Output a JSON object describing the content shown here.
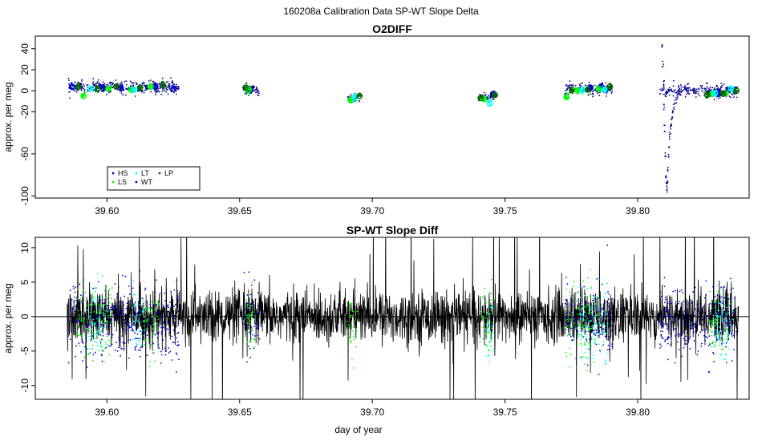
{
  "page_title": "160208a   Calibration Data SP-WT Slope Delta",
  "colors": {
    "HS": "#0000cd",
    "LS": "#00ff00",
    "LT": "#00ffff",
    "WT": "#00008b",
    "LP": "#006400",
    "spwt_line": "#000000"
  },
  "chart_data": [
    {
      "type": "scatter",
      "title": "O2DIFF",
      "xlabel": "",
      "ylabel": "approx. per meg",
      "xlim": [
        39.573,
        39.842
      ],
      "ylim": [
        -102,
        52
      ],
      "x_ticks": [
        39.6,
        39.65,
        39.7,
        39.75,
        39.8
      ],
      "x_tick_labels": [
        "39.60",
        "39.65",
        "39.70",
        "39.75",
        "39.80"
      ],
      "y_ticks": [
        -100,
        -60,
        -20,
        0,
        20,
        40
      ],
      "y_tick_labels": [
        "-100",
        "-60",
        "-20",
        "0",
        "20",
        "40"
      ],
      "legend": {
        "placement": "bottom-left",
        "entries": [
          {
            "key": "HS",
            "label": "HS"
          },
          {
            "key": "LS",
            "label": "LS"
          },
          {
            "key": "LT",
            "label": "LT"
          },
          {
            "key": "WT",
            "label": "WT"
          },
          {
            "key": "LP",
            "label": "LP"
          }
        ]
      },
      "series": [
        {
          "key": "WT",
          "segments": [
            [
              39.5855,
              39.6272,
              3.5,
              3
            ],
            [
              39.6515,
              39.6575,
              0.5,
              2
            ],
            [
              39.6905,
              39.6945,
              -7,
              2
            ],
            [
              39.7405,
              39.7455,
              -6,
              2
            ],
            [
              39.7725,
              39.7905,
              1.5,
              2.5
            ],
            [
              39.8082,
              39.8375,
              0,
              3
            ]
          ]
        },
        {
          "key": "WT_spike",
          "points": [
            [
              39.8092,
              45
            ],
            [
              39.8095,
              25
            ],
            [
              39.8098,
              8
            ],
            [
              39.81,
              -15
            ],
            [
              39.8102,
              -35
            ],
            [
              39.8104,
              -60
            ],
            [
              39.8106,
              -80
            ],
            [
              39.8108,
              -90
            ],
            [
              39.811,
              -94
            ],
            [
              39.8112,
              -88
            ],
            [
              39.8114,
              -75
            ],
            [
              39.8116,
              -62
            ],
            [
              39.8118,
              -52
            ],
            [
              39.812,
              -44
            ],
            [
              39.8123,
              -37
            ],
            [
              39.8126,
              -31
            ],
            [
              39.8129,
              -26
            ],
            [
              39.8132,
              -21
            ],
            [
              39.8136,
              -16
            ],
            [
              39.814,
              -12
            ],
            [
              39.8145,
              -8
            ],
            [
              39.815,
              -5
            ],
            [
              39.8156,
              -3
            ]
          ]
        },
        {
          "key": "HS",
          "points": [
            [
              39.5868,
              4
            ],
            [
              39.5985,
              3
            ],
            [
              39.6052,
              3
            ],
            [
              39.6182,
              4
            ],
            [
              39.6252,
              2
            ],
            [
              39.6542,
              1
            ],
            [
              39.7455,
              -3
            ],
            [
              39.7822,
              3
            ],
            [
              39.7862,
              4
            ],
            [
              39.8302,
              -2
            ],
            [
              39.8342,
              1
            ]
          ]
        },
        {
          "key": "LS",
          "points": [
            [
              39.5912,
              -5
            ],
            [
              39.6005,
              2
            ],
            [
              39.6092,
              1
            ],
            [
              39.6165,
              4
            ],
            [
              39.6535,
              1
            ],
            [
              39.6918,
              -9
            ],
            [
              39.7421,
              -8
            ],
            [
              39.7732,
              -6
            ],
            [
              39.7772,
              0
            ],
            [
              39.7852,
              2
            ],
            [
              39.8282,
              -3
            ],
            [
              39.8332,
              -2
            ]
          ]
        },
        {
          "key": "LT",
          "points": [
            [
              39.5938,
              2
            ],
            [
              39.6102,
              1
            ],
            [
              39.6935,
              -6
            ],
            [
              39.7442,
              -12
            ],
            [
              39.7792,
              1
            ],
            [
              39.7875,
              1
            ],
            [
              39.8292,
              -2
            ],
            [
              39.8352,
              2
            ]
          ]
        },
        {
          "key": "LP",
          "points": [
            [
              39.5892,
              4
            ],
            [
              39.5965,
              2
            ],
            [
              39.6035,
              4
            ],
            [
              39.6125,
              3
            ],
            [
              39.6212,
              5
            ],
            [
              39.6522,
              3
            ],
            [
              39.6952,
              -5
            ],
            [
              39.7408,
              -7
            ],
            [
              39.7462,
              -4
            ],
            [
              39.7752,
              1
            ],
            [
              39.7812,
              1
            ],
            [
              39.7895,
              4
            ],
            [
              39.8262,
              -4
            ],
            [
              39.8322,
              -3
            ],
            [
              39.8372,
              0
            ]
          ]
        }
      ]
    },
    {
      "type": "line",
      "title": "SP-WT Slope Diff",
      "xlabel": "day of year",
      "ylabel": "approx. per meg",
      "xlim": [
        39.573,
        39.842
      ],
      "ylim": [
        -12,
        11.5
      ],
      "x_ticks": [
        39.6,
        39.65,
        39.7,
        39.75,
        39.8
      ],
      "x_tick_labels": [
        "39.60",
        "39.65",
        "39.70",
        "39.75",
        "39.80"
      ],
      "y_ticks": [
        -10,
        -5,
        0,
        5,
        10
      ],
      "y_tick_labels": [
        "-10",
        "-5",
        "0",
        "5",
        "10"
      ],
      "reference_line_y": 0,
      "series": [
        {
          "key": "spwt_line",
          "name": "",
          "x_range": [
            39.585,
            39.838
          ],
          "values_sampled": true,
          "noise_amplitude": 3.5
        },
        {
          "key": "HS",
          "intervals": [
            [
              39.5855,
              39.6272
            ],
            [
              39.6515,
              39.6575
            ],
            [
              39.7725,
              39.7905
            ],
            [
              39.8082,
              39.8375
            ]
          ]
        },
        {
          "key": "LS",
          "intervals": [
            [
              39.5885,
              39.602
            ],
            [
              39.6135,
              39.62
            ],
            [
              39.652,
              39.656
            ],
            [
              39.6905,
              39.6945
            ],
            [
              39.7405,
              39.7455
            ],
            [
              39.7725,
              39.785
            ],
            [
              39.827,
              39.834
            ]
          ]
        },
        {
          "key": "LT",
          "intervals": [
            [
              39.593,
              39.599
            ],
            [
              39.6095,
              39.614
            ],
            [
              39.7425,
              39.7455
            ],
            [
              39.778,
              39.789
            ],
            [
              39.8285,
              39.836
            ]
          ]
        }
      ]
    }
  ]
}
